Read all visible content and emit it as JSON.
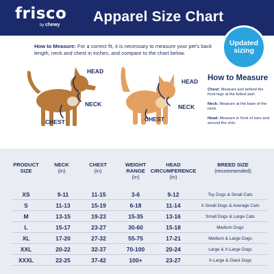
{
  "header": {
    "logo": "frisco",
    "logo_sub_by": "by",
    "logo_sub_brand": "chewy",
    "title": "Apparel Size Chart"
  },
  "badge": {
    "line1": "Updated",
    "line2": "sizing"
  },
  "how_to": {
    "lead": "How to Measure:",
    "body": " For a correct fit, it is necessary to measure your pet's back length, neck and chest in inches, and compare to the chart below."
  },
  "dog_labels": {
    "head": "HEAD",
    "neck": "NECK",
    "chest": "CHEST"
  },
  "cat_labels": {
    "head": "HEAD",
    "neck": "NECK",
    "chest": "CHEST"
  },
  "how_to_measure": {
    "title": "How to Measure",
    "items": [
      {
        "term": "Chest:",
        "desc": " Measure just behind the front legs at the fullest part."
      },
      {
        "term": "Neck:",
        "desc": " Measure at the base of the neck."
      },
      {
        "term": "Head:",
        "desc": " Measure in front of ears and around the chin."
      }
    ]
  },
  "table": {
    "headers": [
      {
        "line1": "PRODUCT",
        "line2": "SIZE",
        "unit": ""
      },
      {
        "line1": "NECK",
        "line2": "",
        "unit": "(in)"
      },
      {
        "line1": "CHEST",
        "line2": "",
        "unit": "(in)"
      },
      {
        "line1": "WEIGHT",
        "line2": "RANGE",
        "unit": "(in)"
      },
      {
        "line1": "HEAD",
        "line2": "CIRCUMFERENCE",
        "unit": "(in)"
      },
      {
        "line1": "BREED SIZE",
        "line2": "",
        "unit": "(recommended)"
      }
    ],
    "rows": [
      {
        "size": "XS",
        "neck": "9-11",
        "chest": "11-15",
        "weight": "3-6",
        "head": "9-12",
        "breed": "Toy Dogs & Small Cats"
      },
      {
        "size": "S",
        "neck": "11-13",
        "chest": "15-19",
        "weight": "6-18",
        "head": "11-14",
        "breed": "X-Small Dogs & Average Cats"
      },
      {
        "size": "M",
        "neck": "13-15",
        "chest": "19-23",
        "weight": "15-35",
        "head": "13-16",
        "breed": "Small Dogs & Large Cats"
      },
      {
        "size": "L",
        "neck": "15-17",
        "chest": "23-27",
        "weight": "30-60",
        "head": "15-18",
        "breed": "Medium Dogs"
      },
      {
        "size": "XL",
        "neck": "17-20",
        "chest": "27-32",
        "weight": "55-75",
        "head": "17-21",
        "breed": "Medium & Large Dogs"
      },
      {
        "size": "XXL",
        "neck": "20-22",
        "chest": "32-37",
        "weight": "70-100",
        "head": "20-24",
        "breed": "Large & X-Large Dogs"
      },
      {
        "size": "XXXL",
        "neck": "22-25",
        "chest": "37-42",
        "weight": "100+",
        "head": "23-27",
        "breed": "X-Large & Giant Dogs"
      }
    ]
  },
  "colors": {
    "navy": "#1b2a6b",
    "accent_blue": "#2aa3df",
    "table_bg": "#e9ecf2"
  }
}
